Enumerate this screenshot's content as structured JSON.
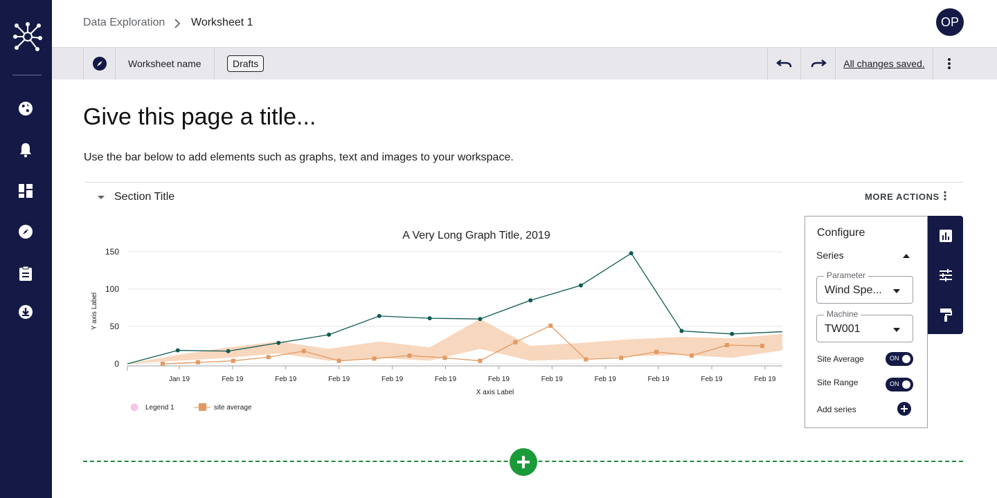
{
  "breadcrumb": {
    "parent": "Data Exploration",
    "current": "Worksheet 1"
  },
  "user": {
    "initials": "OP"
  },
  "toolbar": {
    "worksheet_name": "Worksheet name",
    "status_chip": "Drafts",
    "saved_status": "All changes saved."
  },
  "page": {
    "title": "Give this page a title...",
    "subtitle": "Use the bar below to add elements such as graphs, text and images to your workspace."
  },
  "section": {
    "title": "Section Title",
    "more_actions": "MORE ACTIONS"
  },
  "configure": {
    "title": "Configure",
    "series_label": "Series",
    "parameter_label": "Parameter",
    "parameter_value": "Wind Spe...",
    "machine_label": "Machine",
    "machine_value": "TW001",
    "site_average_label": "Site Average",
    "site_average_state": "ON",
    "site_range_label": "Site Range",
    "site_range_state": "ON",
    "add_series_label": "Add series"
  },
  "sidebar": {
    "items": [
      "globe-icon",
      "bell-icon",
      "dashboard-icon",
      "compass-icon",
      "clipboard-icon",
      "download-icon"
    ]
  },
  "colors": {
    "navy": "#141a45",
    "line": "#0f5a52",
    "avg": "#e39a62",
    "range": "#f4c9a8",
    "legend1": "#f7c6e6",
    "add_green": "#1b9a3a"
  },
  "chart_data": {
    "type": "line",
    "title": "A Very Long Graph Title,  2019",
    "xlabel": "X axis Label",
    "ylabel": "Y axis Label",
    "ylim": [
      0,
      150
    ],
    "yticks": [
      0,
      50,
      100,
      150
    ],
    "x_tick_labels": [
      "Jan 19",
      "Feb 19",
      "Feb 19",
      "Feb 19",
      "Feb 19",
      "Feb 19",
      "Feb 19",
      "Feb 19",
      "Feb 19",
      "Feb 19",
      "Feb 19",
      "Feb 19",
      "Feb 19"
    ],
    "series": [
      {
        "name": "Legend 1",
        "x": [
          0,
          1,
          2,
          3,
          4,
          5,
          6,
          7,
          8,
          9,
          10,
          11,
          12,
          13
        ],
        "values": [
          0,
          18,
          17,
          28,
          39,
          64,
          61,
          60,
          85,
          105,
          148,
          44,
          40,
          43
        ]
      },
      {
        "name": "site average",
        "x": [
          0.7,
          1.4,
          2.1,
          2.8,
          3.5,
          4.2,
          4.9,
          5.6,
          6.3,
          7.0,
          7.7,
          8.4,
          9.1,
          9.8,
          10.5,
          11.2,
          11.9,
          12.6
        ],
        "values": [
          0,
          2,
          4,
          9,
          17,
          4,
          7,
          11,
          8,
          4,
          29,
          51,
          6,
          8,
          16,
          11,
          25,
          24
        ]
      }
    ],
    "range_band": {
      "x": [
        0,
        1,
        2,
        3,
        4,
        5,
        6,
        7,
        8,
        9,
        10,
        11,
        12,
        13
      ],
      "upper": [
        0,
        12,
        22,
        30,
        20,
        30,
        22,
        60,
        24,
        28,
        33,
        36,
        34,
        40
      ],
      "lower": [
        0,
        4,
        8,
        14,
        4,
        8,
        4,
        20,
        4,
        6,
        10,
        12,
        8,
        18
      ]
    },
    "legend": [
      "Legend 1",
      "site average"
    ]
  }
}
